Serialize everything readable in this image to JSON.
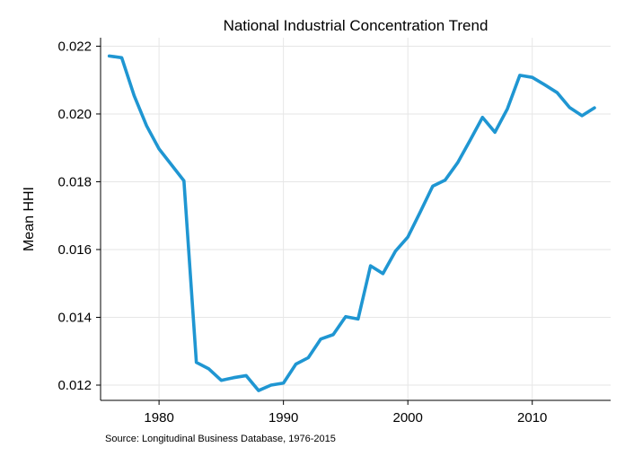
{
  "chart_data": {
    "type": "line",
    "title": "National Industrial Concentration Trend",
    "xlabel": "",
    "ylabel": "Mean HHI",
    "source": "Source: Longitudinal Business Database, 1976-2015",
    "xlim": [
      1975.3,
      2016.3
    ],
    "ylim": [
      0.01155,
      0.02225
    ],
    "x_ticks": [
      1980,
      1990,
      2000,
      2010
    ],
    "x_tick_labels": [
      "1980",
      "1990",
      "2000",
      "2010"
    ],
    "y_ticks": [
      0.012,
      0.014,
      0.016,
      0.018,
      0.02,
      0.022
    ],
    "y_tick_labels": [
      "0.012",
      "0.014",
      "0.016",
      "0.018",
      "0.020",
      "0.022"
    ],
    "grid": true,
    "color": "#1f96d2",
    "x": [
      1976,
      1977,
      1978,
      1979,
      1980,
      1981,
      1982,
      1983,
      1984,
      1985,
      1986,
      1987,
      1988,
      1989,
      1990,
      1991,
      1992,
      1993,
      1994,
      1995,
      1996,
      1997,
      1998,
      1999,
      2000,
      2001,
      2002,
      2003,
      2004,
      2005,
      2006,
      2007,
      2008,
      2009,
      2010,
      2011,
      2012,
      2013,
      2014,
      2015
    ],
    "values": [
      0.02171,
      0.02166,
      0.02054,
      0.01965,
      0.01897,
      0.0185,
      0.01803,
      0.01267,
      0.01248,
      0.01214,
      0.01222,
      0.01228,
      0.01184,
      0.012,
      0.01206,
      0.01262,
      0.01281,
      0.01336,
      0.01349,
      0.01402,
      0.01395,
      0.01552,
      0.01529,
      0.01595,
      0.01637,
      0.01711,
      0.01787,
      0.01805,
      0.01856,
      0.01922,
      0.0199,
      0.01946,
      0.02015,
      0.02114,
      0.02108,
      0.02086,
      0.02063,
      0.02019,
      0.01995,
      0.02018
    ]
  }
}
